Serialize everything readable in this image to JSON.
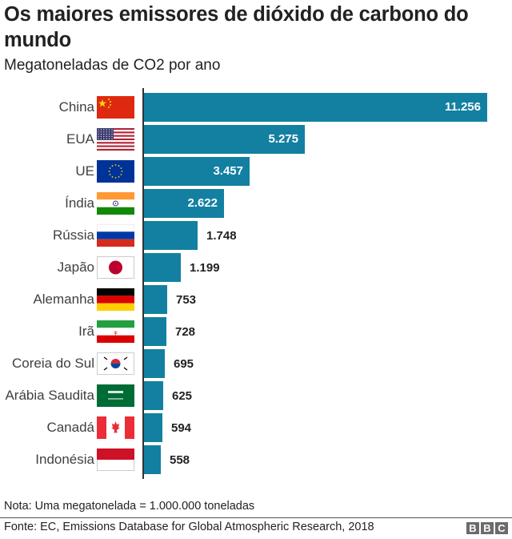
{
  "header": {
    "title": "Os maiores emissores de dióxido de carbono do mundo",
    "subtitle": "Megatoneladas de CO2 por ano"
  },
  "footer": {
    "note": "Nota: Uma megatonelada = 1.000.000 toneladas",
    "source": "Fonte: EC, Emissions Database for Global Atmospheric Research, 2018",
    "logo_letters": [
      "B",
      "B",
      "C"
    ]
  },
  "colors": {
    "bar": "#1380A1",
    "axis": "#333333",
    "text": "#222222"
  },
  "rows": [
    {
      "label": "China",
      "value_label": "11.256",
      "flag": "china-flag"
    },
    {
      "label": "EUA",
      "value_label": "5.275",
      "flag": "usa-flag"
    },
    {
      "label": "UE",
      "value_label": "3.457",
      "flag": "eu-flag"
    },
    {
      "label": "Índia",
      "value_label": "2.622",
      "flag": "india-flag"
    },
    {
      "label": "Rússia",
      "value_label": "1.748",
      "flag": "russia-flag"
    },
    {
      "label": "Japão",
      "value_label": "1.199",
      "flag": "japan-flag"
    },
    {
      "label": "Alemanha",
      "value_label": "753",
      "flag": "germany-flag"
    },
    {
      "label": "Irã",
      "value_label": "728",
      "flag": "iran-flag"
    },
    {
      "label": "Coreia do Sul",
      "value_label": "695",
      "flag": "south-korea-flag"
    },
    {
      "label": "Arábia Saudita",
      "value_label": "625",
      "flag": "saudi-arabia-flag"
    },
    {
      "label": "Canadá",
      "value_label": "594",
      "flag": "canada-flag"
    },
    {
      "label": "Indonésia",
      "value_label": "558",
      "flag": "indonesia-flag"
    }
  ],
  "chart_data": {
    "type": "bar",
    "orientation": "horizontal",
    "title": "Os maiores emissores de dióxido de carbono do mundo",
    "subtitle": "Megatoneladas de CO2 por ano",
    "xlabel": "",
    "ylabel": "",
    "categories": [
      "China",
      "EUA",
      "UE",
      "Índia",
      "Rússia",
      "Japão",
      "Alemanha",
      "Irã",
      "Coreia do Sul",
      "Arábia Saudita",
      "Canadá",
      "Indonésia"
    ],
    "values": [
      11256,
      5275,
      3457,
      2622,
      1748,
      1199,
      753,
      728,
      695,
      625,
      594,
      558
    ],
    "units": "Megatoneladas de CO2 por ano",
    "grid": false,
    "legend": "none",
    "data_labels": true,
    "note": "Nota: Uma megatonelada = 1.000.000 toneladas",
    "source": "Fonte: EC, Emissions Database for Global Atmospheric Research, 2018"
  }
}
